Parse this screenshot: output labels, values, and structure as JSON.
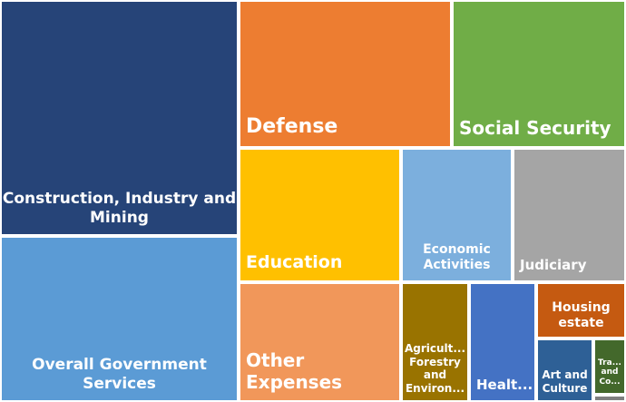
{
  "chart_data": {
    "type": "treemap",
    "title": "",
    "items": [
      {
        "label": "Construction, Industry and Mining",
        "value": 14.7,
        "color": "#264478"
      },
      {
        "label": "Overall Government Services",
        "value": 12.8,
        "color": "#5B9BD5"
      },
      {
        "label": "Defense",
        "value": 8.1,
        "color": "#ED7D31"
      },
      {
        "label": "Social Security",
        "value": 6.2,
        "color": "#70AD47"
      },
      {
        "label": "Education",
        "value": 5.5,
        "color": "#FFC000"
      },
      {
        "label": "Economic Activities",
        "value": 3.5,
        "color": "#7CAFDD"
      },
      {
        "label": "Judiciary",
        "value": 3.5,
        "color": "#A5A5A5"
      },
      {
        "label": "Other Expenses",
        "value": 4.1,
        "color": "#F1975A"
      },
      {
        "label": "Agricult...\nForestry\nand\nEnviron...",
        "value": 1.7,
        "color": "#997300"
      },
      {
        "label": "Healt...",
        "value": 1.7,
        "color": "#4472C4"
      },
      {
        "label": "Housing\nestate",
        "value": 0.9,
        "color": "#C55A11"
      },
      {
        "label": "Art and\nCulture",
        "value": 0.75,
        "color": "#2E6096"
      },
      {
        "label": "Tra...\nand\nCo...",
        "value": 0.3,
        "color": "#43682B"
      },
      {
        "label": "",
        "value": 0.05,
        "color": "#7F7F7F"
      }
    ]
  }
}
